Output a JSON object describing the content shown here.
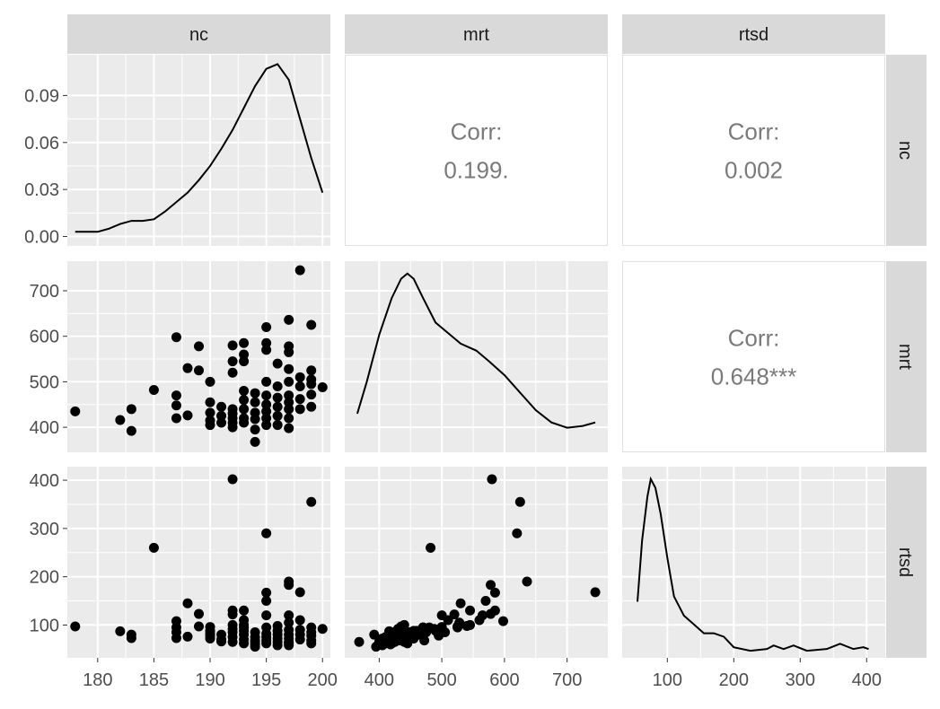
{
  "chart_data": {
    "type": "scatter-matrix",
    "variables": [
      "nc",
      "mrt",
      "rtsd"
    ],
    "strip_labels": {
      "top": [
        "nc",
        "mrt",
        "rtsd"
      ],
      "right": [
        "nc",
        "mrt",
        "rtsd"
      ]
    },
    "axes": {
      "nc": {
        "range": [
          177.3,
          200.7
        ],
        "ticks": [
          180,
          185,
          190,
          195,
          200
        ]
      },
      "mrt": {
        "range": [
          345,
          765
        ],
        "ticks": [
          400,
          500,
          600,
          700
        ]
      },
      "rtsd": {
        "range": [
          32,
          428
        ],
        "ticks": [
          100,
          200,
          300,
          400
        ]
      },
      "density_nc": {
        "range": [
          -0.006,
          0.116
        ],
        "ticks": [
          0.0,
          0.03,
          0.06,
          0.09
        ],
        "tick_labels": [
          "0.00",
          "0.03",
          "0.06",
          "0.09"
        ]
      }
    },
    "correlations": [
      {
        "row": "nc",
        "col": "mrt",
        "label": "Corr:",
        "value": "0.199."
      },
      {
        "row": "nc",
        "col": "rtsd",
        "label": "Corr:",
        "value": "0.002"
      },
      {
        "row": "mrt",
        "col": "rtsd",
        "label": "Corr:",
        "value": "0.648***"
      }
    ],
    "density_nc": [
      [
        178,
        0.003
      ],
      [
        179,
        0.003
      ],
      [
        180,
        0.003
      ],
      [
        181,
        0.005
      ],
      [
        182,
        0.008
      ],
      [
        183,
        0.01
      ],
      [
        184,
        0.01
      ],
      [
        185,
        0.011
      ],
      [
        186,
        0.016
      ],
      [
        187,
        0.022
      ],
      [
        188,
        0.028
      ],
      [
        189,
        0.036
      ],
      [
        190,
        0.045
      ],
      [
        191,
        0.056
      ],
      [
        192,
        0.068
      ],
      [
        193,
        0.082
      ],
      [
        194,
        0.096
      ],
      [
        195,
        0.107
      ],
      [
        196,
        0.11
      ],
      [
        197,
        0.1
      ],
      [
        198,
        0.075
      ],
      [
        199,
        0.05
      ],
      [
        200,
        0.028
      ]
    ],
    "density_mrt": [
      [
        365,
        0.2
      ],
      [
        380,
        0.38
      ],
      [
        400,
        0.65
      ],
      [
        420,
        0.86
      ],
      [
        435,
        0.97
      ],
      [
        445,
        1.0
      ],
      [
        455,
        0.97
      ],
      [
        470,
        0.86
      ],
      [
        490,
        0.72
      ],
      [
        510,
        0.66
      ],
      [
        530,
        0.6
      ],
      [
        555,
        0.56
      ],
      [
        575,
        0.5
      ],
      [
        600,
        0.42
      ],
      [
        625,
        0.32
      ],
      [
        650,
        0.22
      ],
      [
        675,
        0.15
      ],
      [
        700,
        0.12
      ],
      [
        725,
        0.13
      ],
      [
        745,
        0.15
      ]
    ],
    "density_rtsd": [
      [
        55,
        0.3
      ],
      [
        62,
        0.65
      ],
      [
        70,
        0.9
      ],
      [
        75,
        1.0
      ],
      [
        82,
        0.95
      ],
      [
        90,
        0.8
      ],
      [
        100,
        0.55
      ],
      [
        110,
        0.33
      ],
      [
        125,
        0.22
      ],
      [
        140,
        0.17
      ],
      [
        155,
        0.12
      ],
      [
        170,
        0.12
      ],
      [
        185,
        0.1
      ],
      [
        200,
        0.04
      ],
      [
        225,
        0.02
      ],
      [
        250,
        0.03
      ],
      [
        260,
        0.05
      ],
      [
        275,
        0.03
      ],
      [
        290,
        0.05
      ],
      [
        310,
        0.02
      ],
      [
        340,
        0.03
      ],
      [
        360,
        0.06
      ],
      [
        380,
        0.03
      ],
      [
        395,
        0.04
      ],
      [
        403,
        0.03
      ]
    ],
    "points": [
      [
        178,
        435,
        97
      ],
      [
        182,
        416,
        87
      ],
      [
        183,
        392,
        80
      ],
      [
        183,
        440,
        73
      ],
      [
        185,
        482,
        260
      ],
      [
        187,
        598,
        108
      ],
      [
        187,
        470,
        95
      ],
      [
        187,
        448,
        85
      ],
      [
        187,
        420,
        73
      ],
      [
        188,
        530,
        145
      ],
      [
        188,
        426,
        76
      ],
      [
        189,
        578,
        123
      ],
      [
        189,
        525,
        97
      ],
      [
        190,
        500,
        96
      ],
      [
        190,
        455,
        88
      ],
      [
        190,
        432,
        82
      ],
      [
        190,
        415,
        78
      ],
      [
        190,
        405,
        72
      ],
      [
        191,
        445,
        80
      ],
      [
        191,
        425,
        70
      ],
      [
        191,
        410,
        66
      ],
      [
        192,
        580,
        402
      ],
      [
        192,
        545,
        130
      ],
      [
        192,
        520,
        122
      ],
      [
        192,
        440,
        100
      ],
      [
        192,
        430,
        92
      ],
      [
        192,
        420,
        85
      ],
      [
        192,
        410,
        75
      ],
      [
        192,
        400,
        65
      ],
      [
        193,
        585,
        130
      ],
      [
        193,
        560,
        110
      ],
      [
        193,
        545,
        100
      ],
      [
        193,
        480,
        95
      ],
      [
        193,
        460,
        88
      ],
      [
        193,
        440,
        80
      ],
      [
        193,
        420,
        70
      ],
      [
        193,
        410,
        62
      ],
      [
        194,
        475,
        85
      ],
      [
        194,
        455,
        75
      ],
      [
        194,
        432,
        68
      ],
      [
        194,
        418,
        60
      ],
      [
        194,
        395,
        55
      ],
      [
        194,
        368,
        65
      ],
      [
        195,
        620,
        290
      ],
      [
        195,
        585,
        167
      ],
      [
        195,
        570,
        150
      ],
      [
        195,
        500,
        120
      ],
      [
        195,
        470,
        95
      ],
      [
        195,
        450,
        82
      ],
      [
        195,
        435,
        75
      ],
      [
        195,
        420,
        68
      ],
      [
        195,
        405,
        62
      ],
      [
        196,
        540,
        98
      ],
      [
        196,
        490,
        88
      ],
      [
        196,
        465,
        80
      ],
      [
        196,
        445,
        72
      ],
      [
        196,
        425,
        65
      ],
      [
        196,
        405,
        58
      ],
      [
        197,
        636,
        190
      ],
      [
        197,
        578,
        183
      ],
      [
        197,
        565,
        120
      ],
      [
        197,
        528,
        105
      ],
      [
        197,
        500,
        90
      ],
      [
        197,
        470,
        80
      ],
      [
        197,
        455,
        72
      ],
      [
        197,
        440,
        65
      ],
      [
        197,
        420,
        62
      ],
      [
        197,
        398,
        58
      ],
      [
        198,
        745,
        168
      ],
      [
        198,
        510,
        110
      ],
      [
        198,
        490,
        90
      ],
      [
        198,
        462,
        80
      ],
      [
        198,
        440,
        70
      ],
      [
        199,
        625,
        355
      ],
      [
        199,
        525,
        95
      ],
      [
        199,
        505,
        85
      ],
      [
        199,
        495,
        78
      ],
      [
        199,
        472,
        68
      ],
      [
        199,
        445,
        62
      ],
      [
        200,
        488,
        92
      ]
    ]
  }
}
